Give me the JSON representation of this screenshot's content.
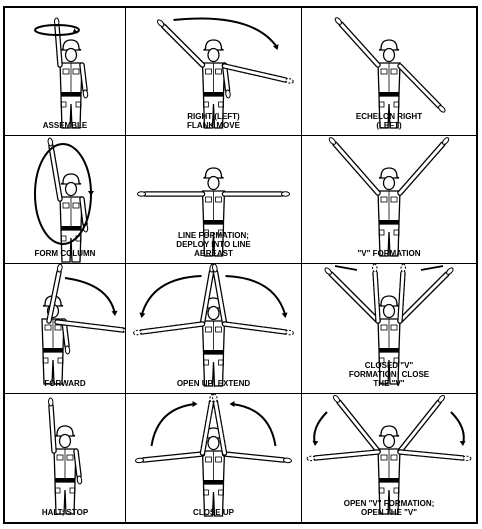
{
  "cells": [
    {
      "label": "ASSEMBLE"
    },
    {
      "label": "RIGHT (LEFT)\nFLANK MOVE"
    },
    {
      "label": "ECHELON RIGHT\n(LEFT)"
    },
    {
      "label": "FORM COLUMN"
    },
    {
      "label": "LINE FORMATION;\nDEPLOY INTO LINE\nABREAST"
    },
    {
      "label": "\"V\" FORMATION"
    },
    {
      "label": "FORWARD"
    },
    {
      "label": "OPEN UP; EXTEND"
    },
    {
      "label": "CLOSED \"V\"\nFORMATION; CLOSE\nTHE \"V\""
    },
    {
      "label": "HALT; STOP"
    },
    {
      "label": "CLOSE UP"
    },
    {
      "label": "OPEN \"V\" FORMATION;\nOPEN THE \"V\""
    }
  ],
  "colors": {
    "ink": "#000000",
    "paper": "#ffffff"
  }
}
